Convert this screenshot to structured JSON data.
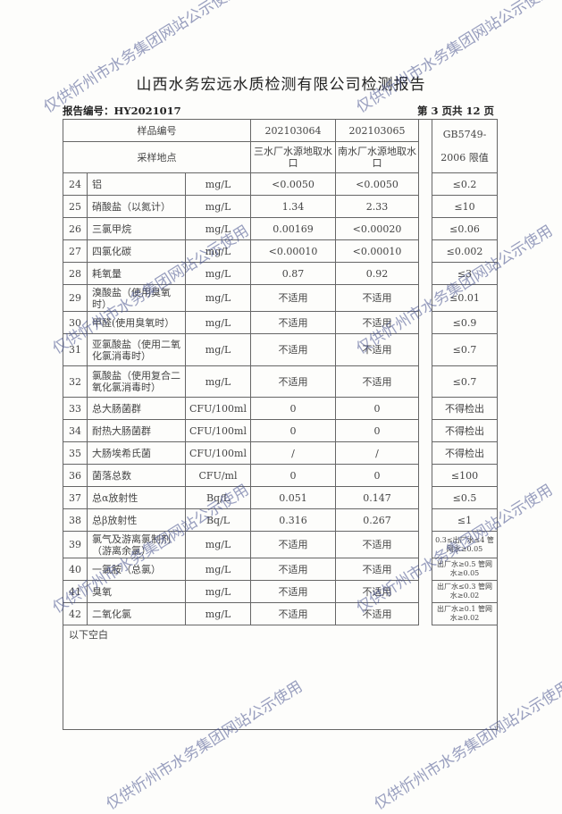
{
  "title": "山西水务宏远水质检测有限公司检测报告",
  "report_no": "报告编号：HY2021017",
  "page_no": "第 3 页共 12 页",
  "header": {
    "sample_no_label": "样品编号",
    "sample1": "202103064",
    "sample2": "202103065",
    "location_label": "采样地点",
    "loc1": "三水厂水源地取水口",
    "loc2": "南水厂水源地取水口",
    "limit_label": "GB5749-2006 限值"
  },
  "rows": [
    {
      "no": "24",
      "name": "铝",
      "unit": "mg/L",
      "v1": "<0.0050",
      "v2": "<0.0050",
      "limit": "≤0.2"
    },
    {
      "no": "25",
      "name": "硝酸盐（以氮计）",
      "unit": "mg/L",
      "v1": "1.34",
      "v2": "2.33",
      "limit": "≤10"
    },
    {
      "no": "26",
      "name": "三氯甲烷",
      "unit": "mg/L",
      "v1": "0.00169",
      "v2": "<0.00020",
      "limit": "≤0.06"
    },
    {
      "no": "27",
      "name": "四氯化碳",
      "unit": "mg/L",
      "v1": "<0.00010",
      "v2": "<0.00010",
      "limit": "≤0.002"
    },
    {
      "no": "28",
      "name": "耗氧量",
      "unit": "mg/L",
      "v1": "0.87",
      "v2": "0.92",
      "limit": "≤3"
    },
    {
      "no": "29",
      "name": "溴酸盐（使用臭氧时）",
      "unit": "mg/L",
      "v1": "不适用",
      "v2": "不适用",
      "limit": "≤0.01"
    },
    {
      "no": "30",
      "name": "甲醛(使用臭氧时）",
      "unit": "mg/L",
      "v1": "不适用",
      "v2": "不适用",
      "limit": "≤0.9"
    },
    {
      "no": "31",
      "name": "亚氯酸盐（使用二氧化氯消毒时）",
      "unit": "mg/L",
      "v1": "不适用",
      "v2": "不适用",
      "limit": "≤0.7"
    },
    {
      "no": "32",
      "name": "氯酸盐（使用复合二氧化氯消毒时）",
      "unit": "mg/L",
      "v1": "不适用",
      "v2": "不适用",
      "limit": "≤0.7"
    },
    {
      "no": "33",
      "name": "总大肠菌群",
      "unit": "CFU/100ml",
      "v1": "0",
      "v2": "0",
      "limit": "不得检出"
    },
    {
      "no": "34",
      "name": "耐热大肠菌群",
      "unit": "CFU/100ml",
      "v1": "0",
      "v2": "0",
      "limit": "不得检出"
    },
    {
      "no": "35",
      "name": "大肠埃希氏菌",
      "unit": "CFU/100ml",
      "v1": "/",
      "v2": "/",
      "limit": "不得检出"
    },
    {
      "no": "36",
      "name": "菌落总数",
      "unit": "CFU/ml",
      "v1": "0",
      "v2": "0",
      "limit": "≤100"
    },
    {
      "no": "37",
      "name": "总α放射性",
      "unit": "Bq/L",
      "v1": "0.051",
      "v2": "0.147",
      "limit": "≤0.5"
    },
    {
      "no": "38",
      "name": "总β放射性",
      "unit": "Bq/L",
      "v1": "0.316",
      "v2": "0.267",
      "limit": "≤1"
    },
    {
      "no": "39",
      "name": "氯气及游离氯制剂（游离余氯）",
      "unit": "mg/L",
      "v1": "不适用",
      "v2": "不适用",
      "limit": "0.3≤出厂水≤4 管网水≥0.05"
    },
    {
      "no": "40",
      "name": "一氯胺（总氯）",
      "unit": "mg/L",
      "v1": "不适用",
      "v2": "不适用",
      "limit": "出厂水≥0.5 管网水≥0.05"
    },
    {
      "no": "41",
      "name": "臭氧",
      "unit": "mg/L",
      "v1": "不适用",
      "v2": "不适用",
      "limit": "出厂水≤0.3 管网水≥0.02"
    },
    {
      "no": "42",
      "name": "二氧化氯",
      "unit": "mg/L",
      "v1": "不适用",
      "v2": "不适用",
      "limit": "出厂水≥0.1 管网水≥0.02"
    }
  ],
  "footer_note": "以下空白",
  "watermark": "仅供忻州市水务集团网站公示使用"
}
